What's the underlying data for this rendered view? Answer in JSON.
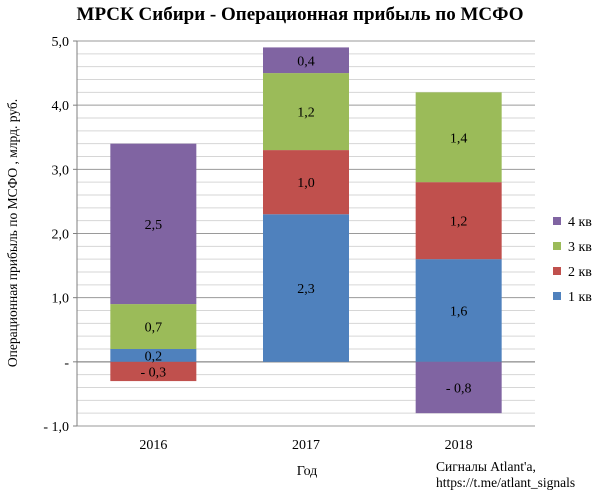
{
  "chart_data": {
    "type": "bar",
    "stacked": true,
    "title": "МРСК Сибири - Операционная прибыль по МСФО",
    "xlabel": "Год",
    "ylabel": "Операционная прибыль по МСФО , млрд. руб.",
    "categories": [
      "2016",
      "2017",
      "2018"
    ],
    "ylim": [
      -1.0,
      5.0
    ],
    "yticks": [
      -1.0,
      0,
      1.0,
      2.0,
      3.0,
      4.0,
      5.0
    ],
    "ytick_labels": [
      "- 1,0",
      "-",
      "1,0",
      "2,0",
      "3,0",
      "4,0",
      "5,0"
    ],
    "grid": true,
    "legend_position": "right",
    "series": [
      {
        "name": "1 кв",
        "color": "#4F81BD",
        "values": [
          0.2,
          2.3,
          1.6
        ],
        "labels": [
          "0,2",
          "2,3",
          "1,6"
        ]
      },
      {
        "name": "2 кв",
        "color": "#C0504D",
        "values": [
          -0.3,
          1.0,
          1.2
        ],
        "labels": [
          "- 0,3",
          "1,0",
          "1,2"
        ]
      },
      {
        "name": "3 кв",
        "color": "#9BBB59",
        "values": [
          0.7,
          1.2,
          1.4
        ],
        "labels": [
          "0,7",
          "1,2",
          "1,4"
        ]
      },
      {
        "name": "4 кв",
        "color": "#8064A2",
        "values": [
          2.5,
          0.4,
          -0.8
        ],
        "labels": [
          "2,5",
          "0,4",
          "- 0,8"
        ]
      }
    ],
    "annotation": [
      "Сигналы Atlant'a,",
      "https://t.me/atlant_signals"
    ]
  }
}
